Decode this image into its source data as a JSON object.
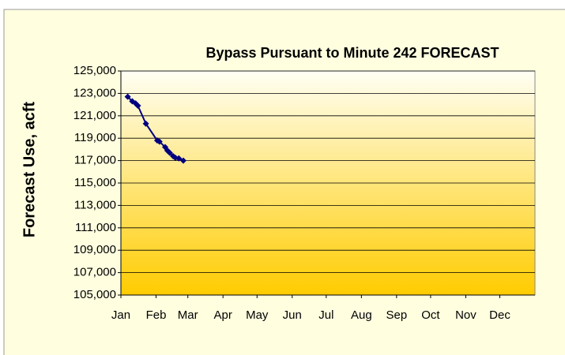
{
  "chart_data": {
    "type": "line",
    "title": "Bypass Pursuant to Minute 242 FORECAST",
    "y_label": "Forecast Use, acft",
    "x": [
      7,
      11,
      14,
      16,
      23,
      33,
      35,
      40,
      42,
      44,
      47,
      49,
      52,
      56
    ],
    "series": [
      {
        "name": "Forecast Use",
        "color": "#000080",
        "values": [
          122700,
          122300,
          122100,
          121900,
          120300,
          118800,
          118700,
          118200,
          117900,
          117700,
          117400,
          117250,
          117200,
          117000
        ]
      }
    ],
    "xlim": [
      1,
      366
    ],
    "xticks": [
      {
        "value": 1,
        "label": "Jan"
      },
      {
        "value": 32,
        "label": "Feb"
      },
      {
        "value": 60,
        "label": "Mar"
      },
      {
        "value": 91,
        "label": "Apr"
      },
      {
        "value": 121,
        "label": "May"
      },
      {
        "value": 152,
        "label": "Jun"
      },
      {
        "value": 182,
        "label": "Jul"
      },
      {
        "value": 213,
        "label": "Aug"
      },
      {
        "value": 244,
        "label": "Sep"
      },
      {
        "value": 274,
        "label": "Oct"
      },
      {
        "value": 305,
        "label": "Nov"
      },
      {
        "value": 335,
        "label": "Dec"
      }
    ],
    "ylim": [
      105000,
      125000
    ],
    "yticks": [
      {
        "value": 105000,
        "label": "105,000"
      },
      {
        "value": 107000,
        "label": "107,000"
      },
      {
        "value": 109000,
        "label": "109,000"
      },
      {
        "value": 111000,
        "label": "111,000"
      },
      {
        "value": 113000,
        "label": "113,000"
      },
      {
        "value": 115000,
        "label": "115,000"
      },
      {
        "value": 117000,
        "label": "117,000"
      },
      {
        "value": 119000,
        "label": "119,000"
      },
      {
        "value": 121000,
        "label": "121,000"
      },
      {
        "value": 123000,
        "label": "123,000"
      },
      {
        "value": 125000,
        "label": "125,000"
      }
    ],
    "grid": true
  }
}
